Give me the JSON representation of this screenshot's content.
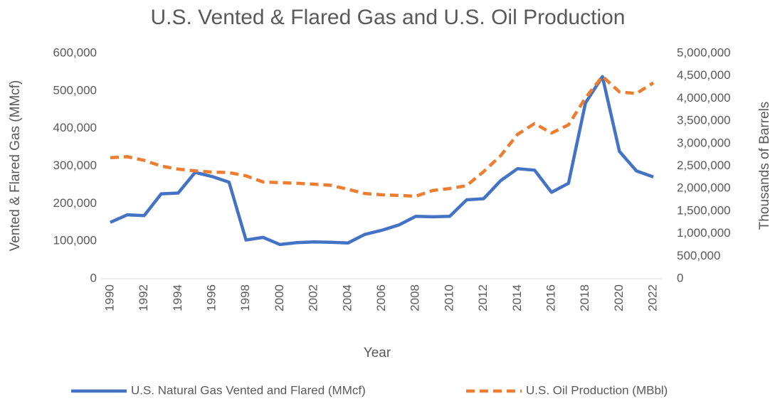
{
  "chart_data": {
    "type": "line",
    "title": "U.S. Vented & Flared Gas and U.S. Oil Production",
    "x_label": "Year",
    "y_label": "Vented & Flared Gas (MMcf)",
    "y2_label": "Thousands of Barrels",
    "categories": [
      "1990",
      null,
      "1992",
      null,
      "1994",
      null,
      "1996",
      null,
      "1998",
      null,
      "2000",
      null,
      "2002",
      null,
      "2004",
      null,
      "2006",
      null,
      "2008",
      null,
      "2010",
      null,
      "2012",
      null,
      "2014",
      null,
      "2016",
      null,
      "2018",
      null,
      "2020",
      null,
      "2022"
    ],
    "series": [
      {
        "name": "U.S. Natural Gas Vented and Flared (MMcf)",
        "color": "#4472c4",
        "style": "solid",
        "values": [
          150000,
          170000,
          168000,
          226000,
          228000,
          283000,
          272000,
          257000,
          103000,
          110000,
          91000,
          96000,
          98000,
          97000,
          95000,
          118000,
          129000,
          143000,
          166000,
          165000,
          166000,
          210000,
          213000,
          261000,
          293000,
          289000,
          230000,
          254000,
          468000,
          538000,
          339000,
          287000,
          271000
        ]
      },
      {
        "name": "U.S. Oil Production (MBbl)",
        "color": "#ed7d31",
        "style": "dashed",
        "axis": "y2",
        "values": [
          2685000,
          2707000,
          2625000,
          2499000,
          2431000,
          2394000,
          2366000,
          2355000,
          2282000,
          2147000,
          2131000,
          2118000,
          2097000,
          2073000,
          1983000,
          1890000,
          1862000,
          1848000,
          1830000,
          1957000,
          2000000,
          2065000,
          2377000,
          2727000,
          3203000,
          3442000,
          3232000,
          3413000,
          4011000,
          4491000,
          4144000,
          4108000,
          4346000
        ]
      }
    ],
    "ylim": [
      0,
      600000
    ],
    "yticks": [
      0,
      {
        "value": 100000,
        "label": "100,000"
      },
      {
        "value": 200000,
        "label": "200,000"
      },
      {
        "value": 300000,
        "label": "300,000"
      },
      {
        "value": 400000,
        "label": "400,000"
      },
      {
        "value": 500000,
        "label": "500,000"
      },
      {
        "value": 600000,
        "label": "600,000"
      }
    ],
    "y2lim": [
      0,
      5000000
    ],
    "y2ticks": [
      0,
      {
        "value": 500000,
        "label": "500,000"
      },
      {
        "value": 1000000,
        "label": "1,000,000"
      },
      {
        "value": 1500000,
        "label": "1,500,000"
      },
      {
        "value": 2000000,
        "label": "2,000,000"
      },
      {
        "value": 2500000,
        "label": "2,500,000"
      },
      {
        "value": 3000000,
        "label": "3,000,000"
      },
      {
        "value": 3500000,
        "label": "3,500,000"
      },
      {
        "value": 4000000,
        "label": "4,000,000"
      },
      {
        "value": 4500000,
        "label": "4,500,000"
      },
      {
        "value": 5000000,
        "label": "5,000,000"
      }
    ],
    "grid": false,
    "legend": "bottom"
  }
}
